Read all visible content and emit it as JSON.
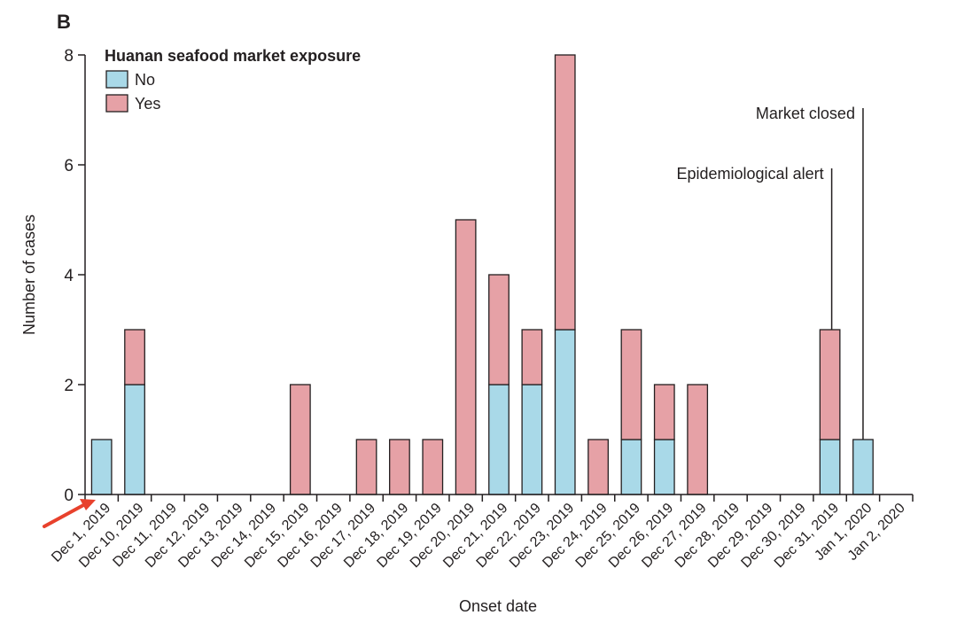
{
  "panel_label": "B",
  "chart_data": {
    "type": "bar",
    "stacked": true,
    "title": "",
    "xlabel": "Onset date",
    "ylabel": "Number of cases",
    "ylim": [
      0,
      8
    ],
    "yticks": [
      0,
      2,
      4,
      6,
      8
    ],
    "categories": [
      "Dec 1, 2019",
      "Dec 10, 2019",
      "Dec 11, 2019",
      "Dec 12, 2019",
      "Dec 13, 2019",
      "Dec 14, 2019",
      "Dec 15, 2019",
      "Dec 16, 2019",
      "Dec 17, 2019",
      "Dec 18, 2019",
      "Dec 19, 2019",
      "Dec 20, 2019",
      "Dec 21, 2019",
      "Dec 22, 2019",
      "Dec 23, 2019",
      "Dec 24, 2019",
      "Dec 25, 2019",
      "Dec 26, 2019",
      "Dec 27, 2019",
      "Dec 28, 2019",
      "Dec 29, 2019",
      "Dec 30, 2019",
      "Dec 31, 2019",
      "Jan 1, 2020",
      "Jan 2, 2020"
    ],
    "legend": {
      "title": "Huanan seafood market exposure",
      "placement": "top-left"
    },
    "series": [
      {
        "name": "No",
        "color": "#a9d9e8",
        "values": [
          1,
          2,
          0,
          0,
          0,
          0,
          0,
          0,
          0,
          0,
          0,
          0,
          2,
          2,
          3,
          0,
          1,
          1,
          0,
          0,
          0,
          0,
          1,
          1,
          0
        ]
      },
      {
        "name": "Yes",
        "color": "#e6a1a6",
        "values": [
          0,
          1,
          0,
          0,
          0,
          0,
          2,
          0,
          1,
          1,
          1,
          5,
          2,
          1,
          5,
          1,
          2,
          1,
          2,
          0,
          0,
          0,
          2,
          0,
          0
        ]
      }
    ],
    "annotations": [
      {
        "text": "Epidemiological alert",
        "category": "Dec 31, 2019"
      },
      {
        "text": "Market closed",
        "category": "Jan 1, 2020"
      }
    ]
  },
  "colors": {
    "axis": "#231f20",
    "bar_stroke": "#231f20",
    "arrow": "#e8412c"
  }
}
